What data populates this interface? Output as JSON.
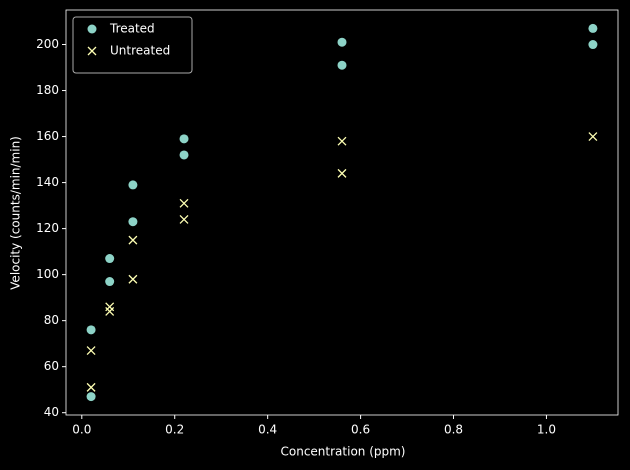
{
  "chart_data": {
    "type": "scatter",
    "xlabel": "Concentration (ppm)",
    "ylabel": "Velocity (counts/min/min)",
    "series": [
      {
        "name": "Treated",
        "color": "#8dd3c7",
        "marker": "circle",
        "x": [
          0.02,
          0.02,
          0.06,
          0.06,
          0.11,
          0.11,
          0.22,
          0.22,
          0.56,
          0.56,
          1.1,
          1.1
        ],
        "values": [
          76,
          47,
          97,
          107,
          123,
          139,
          159,
          152,
          191,
          201,
          207,
          200
        ]
      },
      {
        "name": "Untreated",
        "color": "#feffb3",
        "marker": "x",
        "x": [
          0.02,
          0.02,
          0.06,
          0.06,
          0.11,
          0.11,
          0.22,
          0.22,
          0.56,
          0.56,
          1.1
        ],
        "values": [
          67,
          51,
          84,
          86,
          98,
          115,
          131,
          124,
          144,
          158,
          160
        ]
      }
    ],
    "xlim": [
      -0.034,
      1.154
    ],
    "xticks": [
      {
        "value": 0,
        "label": "0.0"
      },
      {
        "value": 0.2,
        "label": "0.2"
      },
      {
        "value": 0.4,
        "label": "0.4"
      },
      {
        "value": 0.6,
        "label": "0.6"
      },
      {
        "value": 0.8,
        "label": "0.8"
      },
      {
        "value": 1,
        "label": "1.0"
      }
    ],
    "ylim": [
      39,
      215
    ],
    "yticks": [
      40,
      60,
      80,
      100,
      120,
      140,
      160,
      180,
      200
    ],
    "legend": "upper-left",
    "grid": false
  }
}
